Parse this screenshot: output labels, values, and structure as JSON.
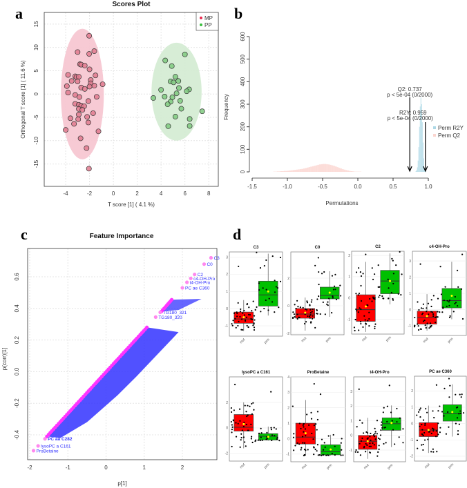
{
  "chart_data": [
    {
      "panel": "a",
      "type": "scatter",
      "title": "Scores Plot",
      "xlabel": "T score [1] ( 4.1 %)",
      "ylabel": "Orthogonal T score [1] ( 11.6 %)",
      "xlim": [
        -5.8,
        8.8
      ],
      "ylim": [
        -19.8,
        17.5
      ],
      "xticks": [
        -4,
        -2,
        0,
        2,
        4,
        6,
        8
      ],
      "yticks": [
        -15,
        -10,
        -5,
        0,
        5,
        10,
        15
      ],
      "grid": true,
      "legend": {
        "position": "top-right",
        "entries": [
          "MP",
          "PP"
        ]
      },
      "colors": {
        "MP": "#e8294f",
        "PP": "#3cc040",
        "MP_fill": "#e07a8e",
        "PP_fill": "#7fc97f",
        "MP_ellipse": "#f6c4cf",
        "PP_ellipse": "#d3ebd1"
      },
      "series": [
        {
          "name": "MP",
          "ellipse": {
            "cx": -2.6,
            "cy": 0,
            "rx": 1.8,
            "ry": 14
          },
          "points": [
            [
              -2.03,
              12.5
            ],
            [
              -3.0,
              9.0
            ],
            [
              -2.03,
              8.6
            ],
            [
              -1.6,
              9.2
            ],
            [
              -2.8,
              6.4
            ],
            [
              -2.7,
              6.3
            ],
            [
              -2.4,
              6.1
            ],
            [
              -2.0,
              5.3
            ],
            [
              -3.8,
              4.1
            ],
            [
              -3.2,
              3.8
            ],
            [
              -3.1,
              3.6
            ],
            [
              -2.9,
              3.7
            ],
            [
              -1.5,
              4.0
            ],
            [
              -3.5,
              2.8
            ],
            [
              -3.0,
              2.7
            ],
            [
              -1.9,
              3.0
            ],
            [
              -1.9,
              2.3
            ],
            [
              -0.9,
              2.1
            ],
            [
              -1.6,
              1.8
            ],
            [
              -2.0,
              1.6
            ],
            [
              -3.9,
              1.7
            ],
            [
              -2.7,
              1.4
            ],
            [
              -2.4,
              1.1
            ],
            [
              -3.8,
              0.3
            ],
            [
              -3.2,
              -0.2
            ],
            [
              -2.85,
              -0.65
            ],
            [
              -1.4,
              -0.6
            ],
            [
              -2.1,
              -1.5
            ],
            [
              -3.2,
              -2.1
            ],
            [
              -2.9,
              -2.3
            ],
            [
              -2.7,
              -2.5
            ],
            [
              -2.45,
              -2.6
            ],
            [
              -2.9,
              -3.2
            ],
            [
              -2.6,
              -3.4
            ],
            [
              -2.9,
              -4.4
            ],
            [
              -1.7,
              -4.1
            ],
            [
              -3.6,
              -5.2
            ],
            [
              -2.95,
              -5.4
            ],
            [
              -2.2,
              -4.9
            ],
            [
              -2.1,
              -6.1
            ],
            [
              -3.3,
              -6.4
            ],
            [
              -4.0,
              -7.7
            ],
            [
              -1.25,
              -8.0
            ],
            [
              -2.75,
              -9.5
            ],
            [
              -2.25,
              -11.6
            ],
            [
              -2.05,
              -16.0
            ]
          ]
        },
        {
          "name": "PP",
          "ellipse": {
            "cx": 5.3,
            "cy": 0.5,
            "rx": 2.1,
            "ry": 10.5
          },
          "points": [
            [
              6.0,
              8.5
            ],
            [
              4.35,
              7.2
            ],
            [
              4.9,
              6.0
            ],
            [
              5.2,
              3.7
            ],
            [
              4.8,
              2.7
            ],
            [
              5.05,
              2.5
            ],
            [
              5.45,
              2.8
            ],
            [
              5.5,
              1.3
            ],
            [
              4.0,
              0.9
            ],
            [
              6.35,
              1.0
            ],
            [
              6.15,
              0.6
            ],
            [
              5.3,
              0.15
            ],
            [
              4.3,
              -0.55
            ],
            [
              3.35,
              -0.85
            ],
            [
              4.95,
              -0.7
            ],
            [
              4.8,
              -1.65
            ],
            [
              5.6,
              -1.45
            ],
            [
              4.55,
              -2.2
            ],
            [
              5.7,
              -3.15
            ],
            [
              7.45,
              -3.7
            ],
            [
              5.2,
              -4.85
            ],
            [
              6.4,
              -5.35
            ],
            [
              4.6,
              -6.9
            ],
            [
              6.4,
              -6.85
            ]
          ]
        }
      ]
    },
    {
      "panel": "b",
      "type": "bar",
      "title": "",
      "xlabel": "Permutations",
      "ylabel": "Frequency",
      "xlim": [
        -1.5,
        1.0
      ],
      "ylim": [
        0,
        600
      ],
      "xticks": [
        "-1.5",
        "-1.0",
        "-0.5",
        "0.0",
        "0.5",
        "1.0"
      ],
      "yticks": [
        "0",
        "100",
        "200",
        "300",
        "400",
        "500",
        "600"
      ],
      "legend": {
        "position": "right",
        "entries": [
          "Perm R2Y",
          "Perm Q2"
        ]
      },
      "colors": {
        "Perm R2Y": "#add8e6",
        "Perm Q2": "#fbd5cf"
      },
      "series": [
        {
          "name": "Perm Q2",
          "bin_width": 0.025,
          "bin_start": -1.2,
          "values": [
            1,
            1,
            2,
            2,
            3,
            3,
            4,
            4,
            5,
            6,
            7,
            8,
            9,
            10,
            11,
            12,
            13,
            15,
            17,
            19,
            21,
            23,
            25,
            27,
            29,
            31,
            33,
            34,
            35,
            35,
            34,
            33,
            31,
            29,
            27,
            24,
            21,
            18,
            15,
            12,
            10,
            8,
            6,
            4,
            3,
            2,
            1,
            1,
            1,
            1,
            0,
            0,
            0,
            0,
            0,
            0,
            0,
            0,
            0,
            0
          ]
        },
        {
          "name": "Perm R2Y",
          "bin_width": 0.01,
          "bin_start": 0.82,
          "values": [
            3,
            8,
            20,
            50,
            110,
            200,
            290,
            330,
            300,
            220,
            130,
            60,
            20,
            6,
            2
          ]
        }
      ],
      "annotations": [
        {
          "label": "Q2: 0.737",
          "sub": "p < 5e-04 (0/2000)",
          "x": 0.737
        },
        {
          "label": "R2Y: 0.959",
          "sub": "p < 5e-04 (0/2000)",
          "x": 0.959
        }
      ]
    },
    {
      "panel": "c",
      "type": "scatter",
      "title": "Feature Importance",
      "xlabel": "p[1]",
      "ylabel": "p(corr)[1]",
      "xlim": [
        -2.05,
        2.9
      ],
      "ylim": [
        -0.55,
        0.78
      ],
      "xticks": [
        "-2",
        "-1",
        "0",
        "1",
        "2"
      ],
      "yticks": [
        "-0.4",
        "-0.2",
        "0.0",
        "0.2",
        "0.4",
        "0.6"
      ],
      "grid": true,
      "colors": {
        "points": "#ff33ff",
        "highlight": "#ff88ee",
        "labels": "#3333ff"
      },
      "main_trend": {
        "from": [
          -1.55,
          -0.41
        ],
        "to": [
          1.07,
          0.28
        ]
      },
      "upper_cluster": {
        "from": [
          1.45,
          0.38
        ],
        "to": [
          1.72,
          0.455
        ]
      },
      "labeled_points": [
        {
          "name": "C3",
          "x": 2.75,
          "y": 0.72
        },
        {
          "name": "C0",
          "x": 2.57,
          "y": 0.68
        },
        {
          "name": "C2",
          "x": 2.32,
          "y": 0.615
        },
        {
          "name": "c4-OH-Pro",
          "x": 2.22,
          "y": 0.59
        },
        {
          "name": "t4-OH-Pro",
          "x": 2.12,
          "y": 0.565
        },
        {
          "name": "PC ae C360",
          "x": 2.0,
          "y": 0.53
        },
        {
          "name": "TG180_321",
          "x": 1.42,
          "y": 0.375
        },
        {
          "name": "TG180_320",
          "x": 1.3,
          "y": 0.345
        },
        {
          "name": "PC aa C282",
          "x": -1.6,
          "y": -0.425
        },
        {
          "name": "lysoPC a C161",
          "x": -1.78,
          "y": -0.47
        },
        {
          "name": "ProBetaine",
          "x": -1.9,
          "y": -0.5
        }
      ]
    },
    {
      "panel": "d",
      "type": "boxplot",
      "groups": [
        "mut",
        "prm"
      ],
      "colors": {
        "mut": "#ff0000",
        "prm": "#00c000",
        "mean": "#ffff00"
      },
      "plots": [
        {
          "title": "C3",
          "ylim": [
            -1.6,
            3.3
          ],
          "yticks": [
            "-1",
            "0",
            "1",
            "2",
            "3"
          ],
          "mut": {
            "min": -1.3,
            "q1": -0.85,
            "median": -0.6,
            "q3": -0.2,
            "max": 0.5,
            "mean": -0.5
          },
          "prm": {
            "min": -0.4,
            "q1": 0.15,
            "median": 0.8,
            "q3": 1.6,
            "max": 3.2,
            "mean": 1.0
          }
        },
        {
          "title": "C0",
          "ylim": [
            -2.1,
            3.9
          ],
          "yticks": [
            "-2",
            "0",
            "2"
          ],
          "mut": {
            "min": -1.8,
            "q1": -0.9,
            "median": -0.6,
            "q3": -0.2,
            "max": 0.6,
            "mean": -0.5
          },
          "prm": {
            "min": -0.8,
            "q1": 0.5,
            "median": 0.75,
            "q3": 1.35,
            "max": 2.5,
            "mean": 0.95
          }
        },
        {
          "title": "C2",
          "ylim": [
            -1.7,
            2.2
          ],
          "yticks": [
            "-1",
            "0",
            "1",
            "2"
          ],
          "mut": {
            "min": -1.6,
            "q1": -1.1,
            "median": -0.55,
            "q3": 0.15,
            "max": 1.7,
            "mean": -0.4
          },
          "prm": {
            "min": -0.3,
            "q1": 0.2,
            "median": 0.8,
            "q3": 1.3,
            "max": 2.1,
            "mean": 0.8
          }
        },
        {
          "title": "c4-OH-Pro",
          "ylim": [
            -1.6,
            3.6
          ],
          "yticks": [
            "-1",
            "0",
            "1",
            "2",
            "3"
          ],
          "mut": {
            "min": -1.3,
            "q1": -0.9,
            "median": -0.5,
            "q3": -0.1,
            "max": 0.95,
            "mean": -0.4
          },
          "prm": {
            "min": -0.6,
            "q1": 0.1,
            "median": 0.55,
            "q3": 1.3,
            "max": 2.95,
            "mean": 0.85
          }
        },
        {
          "title": "lysoPC a C161",
          "ylim": [
            -2.6,
            4.0
          ],
          "yticks": [
            "-2",
            "0",
            "2"
          ],
          "mut": {
            "min": -1.6,
            "q1": -0.25,
            "median": 0.05,
            "q3": 1.05,
            "max": 2.0,
            "mean": 0.3
          },
          "prm": {
            "min": -1.0,
            "q1": -0.95,
            "median": -0.65,
            "q3": -0.45,
            "max": 0.1,
            "mean": -0.7
          }
        },
        {
          "title": "ProBetaine",
          "ylim": [
            -1.5,
            4.0
          ],
          "yticks": [
            "-1",
            "0",
            "1",
            "2",
            "3",
            "4"
          ],
          "mut": {
            "min": -1.1,
            "q1": -0.35,
            "median": 0.1,
            "q3": 1.0,
            "max": 2.5,
            "mean": 0.35
          },
          "prm": {
            "min": -1.1,
            "q1": -1.05,
            "median": -0.85,
            "q3": -0.4,
            "max": 0.25,
            "mean": -0.7
          }
        },
        {
          "title": "t4-OH-Pro",
          "ylim": [
            -1.8,
            4.0
          ],
          "yticks": [
            "-1",
            "0",
            "1",
            "2",
            "3"
          ],
          "mut": {
            "min": -1.6,
            "q1": -0.95,
            "median": -0.4,
            "q3": 0.0,
            "max": 1.2,
            "mean": -0.4
          },
          "prm": {
            "min": -0.8,
            "q1": 0.35,
            "median": 0.8,
            "q3": 1.2,
            "max": 2.05,
            "mean": 0.85
          }
        },
        {
          "title": "PC ae C360",
          "ylim": [
            -2.3,
            2.9
          ],
          "yticks": [
            "-2",
            "-1",
            "0",
            "1",
            "2"
          ],
          "mut": {
            "min": -1.8,
            "q1": -0.8,
            "median": -0.4,
            "q3": 0.05,
            "max": 1.1,
            "mean": -0.4
          },
          "prm": {
            "min": -0.8,
            "q1": 0.15,
            "median": 0.6,
            "q3": 1.15,
            "max": 2.4,
            "mean": 0.7
          }
        }
      ]
    }
  ],
  "panel_labels": [
    "a",
    "b",
    "c",
    "d"
  ]
}
